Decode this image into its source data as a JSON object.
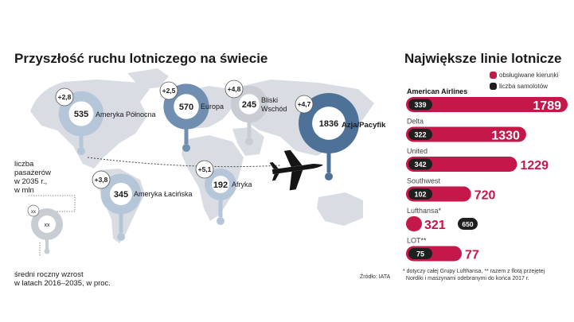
{
  "left": {
    "title": "Przyszłość ruchu lotniczego na świecie",
    "legend": {
      "pax_label": "liczba\npasażerów\nw 2035 r.,\nw mln",
      "growth_label": "średni roczny wzrost\nw latach 2016–2035, w proc.",
      "sample_value": "xx"
    },
    "source": "Źródło: IATA"
  },
  "right": {
    "title": "Największe linie lotnicze",
    "legend": {
      "destinations": "obsługiwane kierunki",
      "fleet": "liczba samolotów"
    },
    "footnote": "* dotyczy całej Grupy Lufthansa, ** razem z flotą przejętej\n  Nordiki i maszynami odebranymi do końca 2017 r."
  },
  "colors": {
    "crimson": "#c4184a",
    "dark": "#1f1f1f",
    "blue_light": "#b5c6d9",
    "blue_mid": "#6f8eb0",
    "blue_dark": "#4e7198",
    "gray_circle": "#c8ccd3",
    "map": "#d9dde3"
  },
  "chart_data": [
    {
      "type": "bubble-map",
      "title": "Przyszłość ruchu lotniczego na świecie",
      "unit_size": "liczba pasażerów w 2035 r., w mln",
      "unit_growth": "średni roczny wzrost w latach 2016–2035, w proc.",
      "regions": [
        {
          "name": "Ameryka Północna",
          "passengers": 535,
          "growth": "+2,8",
          "shade": "blue_light"
        },
        {
          "name": "Europa",
          "passengers": 570,
          "growth": "+2,5",
          "shade": "blue_mid"
        },
        {
          "name": "Bliski\nWschód",
          "passengers": 245,
          "growth": "+4,8",
          "shade": "gray_circle"
        },
        {
          "name": "Azja/Pacyfik",
          "passengers": 1836,
          "growth": "+4,7",
          "shade": "blue_dark"
        },
        {
          "name": "Ameryka Łacińska",
          "passengers": 345,
          "growth": "+3,8",
          "shade": "blue_light"
        },
        {
          "name": "Afryka",
          "passengers": 192,
          "growth": "+5,1",
          "shade": "blue_light"
        }
      ]
    },
    {
      "type": "bar",
      "title": "Największe linie lotnicze",
      "series": [
        {
          "name": "obsługiwane kierunki",
          "color": "crimson"
        },
        {
          "name": "liczba samolotów",
          "color": "dark"
        }
      ],
      "airlines": [
        {
          "name": "American Airlines",
          "destinations": 1789,
          "fleet": 339,
          "bold": true
        },
        {
          "name": "Delta",
          "destinations": 1330,
          "fleet": 322
        },
        {
          "name": "United",
          "destinations": 1229,
          "fleet": 342
        },
        {
          "name": "Southwest",
          "destinations": 720,
          "fleet": 102
        },
        {
          "name": "Lufthansa*",
          "destinations": 321,
          "fleet": 650
        },
        {
          "name": "LOT**",
          "destinations": 77,
          "fleet": 75
        }
      ]
    }
  ]
}
